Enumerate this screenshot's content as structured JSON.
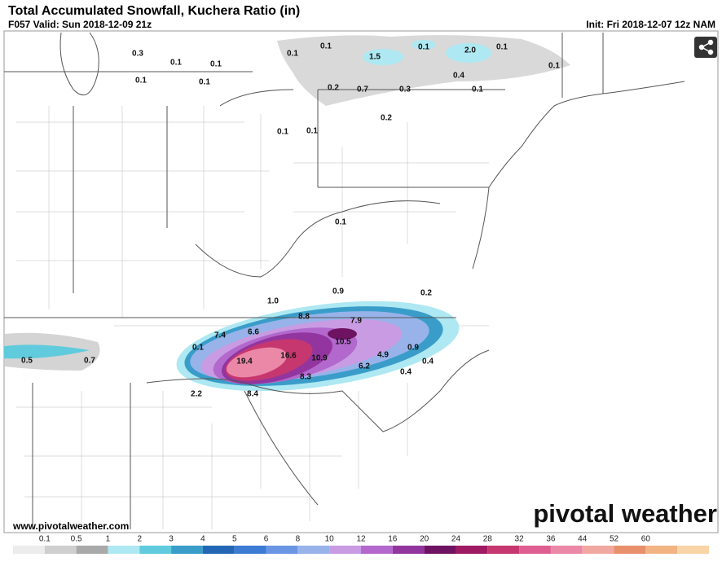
{
  "header": {
    "title": "Total Accumulated Snowfall, Kuchera Ratio (in)",
    "valid": "F057 Valid: Sun 2018-12-09 21z",
    "init": "Init: Fri 2018-12-07 12z NAM"
  },
  "map": {
    "labels": [
      "0.3",
      "0.1",
      "0.1",
      "0.1",
      "0.1",
      "0.1",
      "0.1",
      "1.5",
      "0.1",
      "2.0",
      "0.1",
      "0.1",
      "0.4",
      "0.2",
      "0.7",
      "0.3",
      "0.1",
      "0.2",
      "0.1",
      "0.1",
      "0.1",
      "0.9",
      "0.2",
      "1.0",
      "8.8",
      "7.9",
      "6.6",
      "7.4",
      "10.5",
      "0.9",
      "0.1",
      "16.6",
      "10.9",
      "4.9",
      "0.4",
      "19.4",
      "6.2",
      "0.4",
      "8.3",
      "2.2",
      "8.4",
      "0.5",
      "0.7"
    ]
  },
  "footer": {
    "website": "www.pivotalweather.com",
    "brand": "pivotal weather"
  },
  "legend": {
    "ticks": [
      0.1,
      0.5,
      1,
      2,
      3,
      4,
      5,
      6,
      8,
      10,
      12,
      16,
      20,
      24,
      28,
      32,
      36,
      44,
      52,
      60
    ],
    "colors": [
      "#ececec",
      "#cfcfcf",
      "#a9a9a9",
      "#aee8f2",
      "#5fcbdc",
      "#3a9dc9",
      "#2266b4",
      "#3c7bd4",
      "#6a95e2",
      "#97b3ea",
      "#c89be2",
      "#b268cc",
      "#93359f",
      "#6e1262",
      "#9e1a62",
      "#c7376f",
      "#df5e91",
      "#eb88a8",
      "#f0a8a0",
      "#e8906c",
      "#f1b482",
      "#f8d4a6"
    ]
  }
}
